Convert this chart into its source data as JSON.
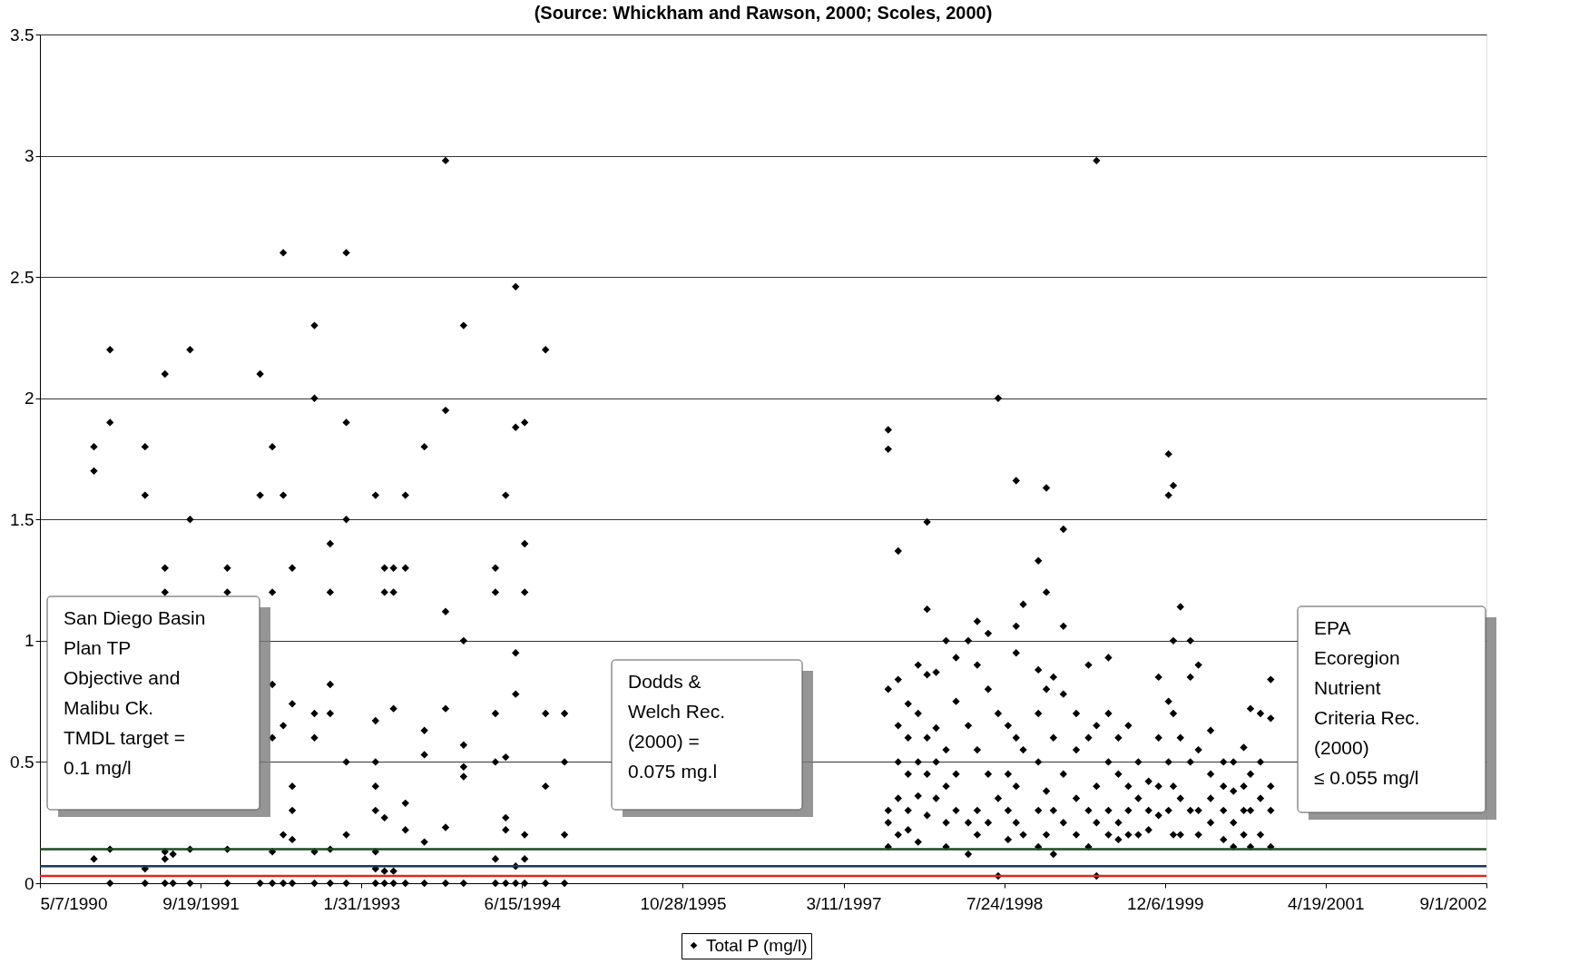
{
  "chart_data": {
    "type": "scatter",
    "title": "(Source: Whickham and Rawson, 2000; Scoles, 2000)",
    "xlim": [
      "1990-05-07",
      "2002-09-01"
    ],
    "xticks": [
      {
        "value": "1990-05-07",
        "label": "5/7/1990"
      },
      {
        "value": "1991-09-19",
        "label": "9/19/1991"
      },
      {
        "value": "1993-01-31",
        "label": "1/31/1993"
      },
      {
        "value": "1994-06-15",
        "label": "6/15/1994"
      },
      {
        "value": "1995-10-28",
        "label": "10/28/1995"
      },
      {
        "value": "1997-03-11",
        "label": "3/11/1997"
      },
      {
        "value": "1998-07-24",
        "label": "7/24/1998"
      },
      {
        "value": "1999-12-06",
        "label": "12/6/1999"
      },
      {
        "value": "2001-04-19",
        "label": "4/19/2001"
      },
      {
        "value": "2002-09-01",
        "label": "9/1/2002"
      }
    ],
    "ylim": [
      0,
      3.5
    ],
    "yticks": [
      0,
      0.5,
      1,
      1.5,
      2,
      2.5,
      3,
      3.5
    ],
    "grid": "y",
    "legend": "bottom",
    "marker": "diamond",
    "series": [
      {
        "name": "Total P (mg/l)",
        "color": "#000000",
        "x": [
          "1990-10-22",
          "1990-10-22",
          "1990-10-22",
          "1990-12-11",
          "1990-12-11",
          "1990-12-11",
          "1990-12-11",
          "1991-03-30",
          "1991-03-30",
          "1991-03-30",
          "1991-03-30",
          "1991-05-31",
          "1991-05-31",
          "1991-05-31",
          "1991-05-31",
          "1991-05-31",
          "1991-05-31",
          "1991-06-25",
          "1991-06-25",
          "1991-08-17",
          "1991-08-17",
          "1991-08-17",
          "1991-08-17",
          "1991-12-11",
          "1991-12-11",
          "1991-12-11",
          "1991-12-11",
          "1992-03-22",
          "1992-03-22",
          "1992-03-22",
          "1992-04-29",
          "1992-04-29",
          "1992-04-29",
          "1992-04-29",
          "1992-04-29",
          "1992-04-29",
          "1992-06-02",
          "1992-06-02",
          "1992-06-02",
          "1992-06-02",
          "1992-06-02",
          "1992-06-30",
          "1992-06-30",
          "1992-06-30",
          "1992-06-30",
          "1992-06-30",
          "1992-06-30",
          "1992-09-07",
          "1992-09-07",
          "1992-09-07",
          "1992-09-07",
          "1992-09-07",
          "1992-09-07",
          "1992-10-26",
          "1992-10-26",
          "1992-10-26",
          "1992-10-26",
          "1992-10-26",
          "1992-10-26",
          "1992-12-15",
          "1992-12-15",
          "1992-12-15",
          "1992-12-15",
          "1992-12-15",
          "1992-12-15",
          "1993-03-16",
          "1993-03-16",
          "1993-03-16",
          "1993-03-16",
          "1993-03-16",
          "1993-03-16",
          "1993-03-16",
          "1993-03-16",
          "1993-04-13",
          "1993-04-13",
          "1993-04-13",
          "1993-04-13",
          "1993-04-13",
          "1993-05-11",
          "1993-05-11",
          "1993-05-11",
          "1993-05-11",
          "1993-05-11",
          "1993-06-17",
          "1993-06-17",
          "1993-06-17",
          "1993-06-17",
          "1993-06-17",
          "1993-08-15",
          "1993-08-15",
          "1993-08-15",
          "1993-08-15",
          "1993-08-15",
          "1993-10-20",
          "1993-10-20",
          "1993-10-20",
          "1993-10-20",
          "1993-10-20",
          "1993-10-20",
          "1993-12-15",
          "1993-12-15",
          "1993-12-15",
          "1993-12-15",
          "1993-12-15",
          "1993-12-15",
          "1994-03-24",
          "1994-03-24",
          "1994-03-24",
          "1994-03-24",
          "1994-03-24",
          "1994-03-24",
          "1994-04-25",
          "1994-04-25",
          "1994-04-25",
          "1994-04-25",
          "1994-04-25",
          "1994-05-26",
          "1994-05-26",
          "1994-05-26",
          "1994-05-26",
          "1994-05-26",
          "1994-05-26",
          "1994-06-23",
          "1994-06-23",
          "1994-06-23",
          "1994-06-23",
          "1994-06-23",
          "1994-06-23",
          "1994-08-27",
          "1994-08-27",
          "1994-08-27",
          "1994-08-27",
          "1994-10-25",
          "1994-10-25",
          "1994-10-25",
          "1994-10-25",
          "1997-07-28",
          "1997-07-28",
          "1997-07-28",
          "1997-07-28",
          "1997-07-28",
          "1997-07-28",
          "1997-08-28",
          "1997-08-28",
          "1997-08-28",
          "1997-08-28",
          "1997-08-28",
          "1997-08-28",
          "1997-09-28",
          "1997-09-28",
          "1997-09-28",
          "1997-09-28",
          "1997-09-28",
          "1997-10-29",
          "1997-10-29",
          "1997-10-29",
          "1997-10-29",
          "1997-10-29",
          "1997-11-26",
          "1997-11-26",
          "1997-11-26",
          "1997-11-26",
          "1997-11-26",
          "1997-11-26",
          "1997-12-24",
          "1997-12-24",
          "1997-12-24",
          "1997-12-24",
          "1998-01-24",
          "1998-01-24",
          "1998-01-24",
          "1998-01-24",
          "1998-01-24",
          "1998-02-24",
          "1998-02-24",
          "1998-02-24",
          "1998-02-24",
          "1998-04-03",
          "1998-04-03",
          "1998-04-03",
          "1998-04-03",
          "1998-05-01",
          "1998-05-01",
          "1998-05-01",
          "1998-05-01",
          "1998-05-01",
          "1998-06-04",
          "1998-06-04",
          "1998-06-04",
          "1998-06-04",
          "1998-07-05",
          "1998-07-05",
          "1998-07-05",
          "1998-07-05",
          "1998-08-05",
          "1998-08-05",
          "1998-08-05",
          "1998-08-05",
          "1998-08-30",
          "1998-08-30",
          "1998-08-30",
          "1998-08-30",
          "1998-08-30",
          "1998-08-30",
          "1998-09-21",
          "1998-09-21",
          "1998-09-21",
          "1998-11-07",
          "1998-11-07",
          "1998-11-07",
          "1998-11-07",
          "1998-11-07",
          "1998-11-07",
          "1998-12-02",
          "1998-12-02",
          "1998-12-02",
          "1998-12-02",
          "1998-12-02",
          "1998-12-24",
          "1998-12-24",
          "1998-12-24",
          "1998-12-24",
          "1999-01-24",
          "1999-01-24",
          "1999-01-24",
          "1999-01-24",
          "1999-01-24",
          "1999-03-05",
          "1999-03-05",
          "1999-03-05",
          "1999-03-05",
          "1999-04-12",
          "1999-04-12",
          "1999-04-12",
          "1999-04-12",
          "1999-05-07",
          "1999-05-07",
          "1999-05-07",
          "1999-05-07",
          "1999-05-07",
          "1999-06-13",
          "1999-06-13",
          "1999-06-13",
          "1999-06-13",
          "1999-06-13",
          "1999-07-14",
          "1999-07-14",
          "1999-07-14",
          "1999-07-14",
          "1999-08-14",
          "1999-08-14",
          "1999-08-14",
          "1999-08-14",
          "1999-09-14",
          "1999-09-14",
          "1999-09-14",
          "1999-10-16",
          "1999-10-16",
          "1999-10-16",
          "1999-11-16",
          "1999-11-16",
          "1999-11-16",
          "1999-11-16",
          "1999-12-17",
          "1999-12-17",
          "1999-12-17",
          "1999-12-17",
          "1999-12-17",
          "2000-01-01",
          "2000-01-01",
          "2000-01-01",
          "2000-01-01",
          "2000-01-01",
          "2000-01-23",
          "2000-01-23",
          "2000-01-23",
          "2000-01-23",
          "2000-02-23",
          "2000-02-23",
          "2000-02-23",
          "2000-02-23",
          "2000-03-19",
          "2000-03-19",
          "2000-03-19",
          "2000-03-19",
          "2000-04-26",
          "2000-04-26",
          "2000-04-26",
          "2000-04-26",
          "2000-06-05",
          "2000-06-05",
          "2000-06-05",
          "2000-06-05",
          "2000-07-06",
          "2000-07-06",
          "2000-07-06",
          "2000-07-06",
          "2000-08-07",
          "2000-08-07",
          "2000-08-07",
          "2000-08-07",
          "2000-08-28",
          "2000-08-28",
          "2000-08-28",
          "2000-08-28",
          "2000-09-28",
          "2000-09-28",
          "2000-09-28",
          "2000-09-28",
          "2000-10-30",
          "2000-10-30",
          "2000-10-30",
          "2000-10-30",
          "2000-10-30"
        ],
        "values": [
          1.8,
          1.7,
          0.1,
          2.2,
          1.9,
          0.14,
          0,
          1.8,
          1.6,
          0.06,
          0,
          2.1,
          1.3,
          1.2,
          0.13,
          0.1,
          0,
          0.12,
          0,
          2.2,
          1.5,
          0.14,
          0,
          1.3,
          1.2,
          0.14,
          0,
          2.1,
          1.6,
          0,
          1.8,
          1.2,
          0.82,
          0.6,
          0.13,
          0,
          2.6,
          1.6,
          0.65,
          0.2,
          0,
          1.3,
          0.74,
          0.4,
          0.3,
          0.18,
          0,
          2.3,
          2.0,
          0.7,
          0.6,
          0.13,
          0,
          1.4,
          1.2,
          0.82,
          0.7,
          0.14,
          0,
          2.6,
          1.9,
          1.5,
          0.5,
          0.2,
          0,
          1.6,
          0.67,
          0.5,
          0.4,
          0.3,
          0.13,
          0.06,
          0,
          1.3,
          1.2,
          0.27,
          0.05,
          0,
          1.3,
          1.2,
          0.72,
          0.05,
          0,
          1.6,
          1.3,
          0.33,
          0.22,
          0,
          1.8,
          0.63,
          0.53,
          0.17,
          0,
          2.98,
          1.95,
          1.12,
          0.72,
          0.23,
          0,
          2.3,
          1.0,
          0.57,
          0.48,
          0.44,
          0,
          1.3,
          1.2,
          0.7,
          0.5,
          0.1,
          0,
          1.6,
          0.52,
          0.27,
          0.22,
          0,
          2.46,
          1.88,
          0.95,
          0.78,
          0.07,
          0,
          1.9,
          1.4,
          1.2,
          0.2,
          0.1,
          0,
          2.2,
          0.7,
          0.4,
          0,
          0.7,
          0.5,
          0.2,
          0,
          1.87,
          1.79,
          0.8,
          0.3,
          0.25,
          0.15,
          1.37,
          0.84,
          0.65,
          0.5,
          0.35,
          0.2,
          0.74,
          0.6,
          0.45,
          0.3,
          0.22,
          0.9,
          0.7,
          0.5,
          0.36,
          0.17,
          1.49,
          1.13,
          0.86,
          0.6,
          0.45,
          0.28,
          0.87,
          0.64,
          0.5,
          0.35,
          1.0,
          0.55,
          0.4,
          0.25,
          0.15,
          0.93,
          0.75,
          0.45,
          0.3,
          1.0,
          0.65,
          0.25,
          0.12,
          1.08,
          0.9,
          0.55,
          0.3,
          0.2,
          1.03,
          0.8,
          0.45,
          0.25,
          2.0,
          0.7,
          0.35,
          0.03,
          0.65,
          0.45,
          0.3,
          0.18,
          1.66,
          1.06,
          0.95,
          0.6,
          0.4,
          0.25,
          1.15,
          0.55,
          0.2,
          1.33,
          0.88,
          0.7,
          0.5,
          0.3,
          0.15,
          1.63,
          1.2,
          0.8,
          0.38,
          0.2,
          0.85,
          0.6,
          0.3,
          0.12,
          1.46,
          1.06,
          0.78,
          0.45,
          0.25,
          0.7,
          0.55,
          0.35,
          0.2,
          0.9,
          0.6,
          0.3,
          0.15,
          2.98,
          0.65,
          0.4,
          0.25,
          0.03,
          0.93,
          0.7,
          0.5,
          0.3,
          0.2,
          0.6,
          0.45,
          0.25,
          0.18,
          0.65,
          0.4,
          0.3,
          0.2,
          0.5,
          0.35,
          0.2,
          0.42,
          0.3,
          0.22,
          0.85,
          0.6,
          0.4,
          0.28,
          1.77,
          1.6,
          0.75,
          0.5,
          0.3,
          1.64,
          1.0,
          0.7,
          0.4,
          0.2,
          1.14,
          0.6,
          0.35,
          0.2,
          1.0,
          0.85,
          0.5,
          0.3,
          0.9,
          0.55,
          0.3,
          0.2,
          0.63,
          0.45,
          0.35,
          0.25,
          0.5,
          0.4,
          0.3,
          0.18,
          0.5,
          0.38,
          0.25,
          0.15,
          0.56,
          0.4,
          0.3,
          0.2,
          0.72,
          0.45,
          0.3,
          0.15,
          0.7,
          0.5,
          0.35,
          0.2,
          0.84,
          0.68,
          0.4,
          0.3,
          0.15
        ]
      }
    ],
    "ref_lines": [
      {
        "axis": "y",
        "value": 0.14,
        "color": "#1e4a1e"
      },
      {
        "axis": "y",
        "value": 0.07,
        "color": "#1f3559"
      },
      {
        "axis": "y",
        "value": 0.03,
        "color": "#e0261c"
      }
    ],
    "annotations": [
      "San Diego Basin\nPlan TP\nObjective and\nMalibu Ck.\nTMDL target  =\n0.1 mg/l",
      "Dodds &\nWelch Rec.\n(2000) =\n0.075 mg.l",
      "EPA\nEcoregion\nNutrient\nCriteria Rec.\n(2000)\n≤ 0.055 mg/l"
    ]
  }
}
